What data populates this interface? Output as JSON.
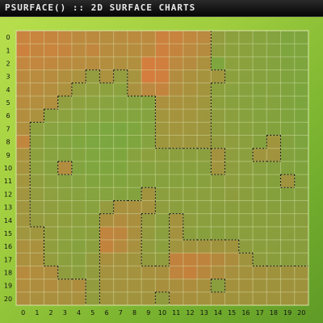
{
  "title": "PSURFACE() :: 2D SURFACE CHARTS",
  "colors": {
    "low": "#58b540",
    "high": "#ec6c3e",
    "frame_start": "#b9e04e",
    "frame_end": "#5f9a27",
    "border": "#d9e5a8",
    "contour": "#111111"
  },
  "chart_data": {
    "type": "heatmap",
    "title": "PSURFACE() :: 2D SURFACE CHARTS",
    "x_ticks": [
      "0",
      "1",
      "2",
      "3",
      "4",
      "5",
      "6",
      "7",
      "8",
      "9",
      "10",
      "11",
      "12",
      "13",
      "14",
      "15",
      "16",
      "17",
      "18",
      "19",
      "20"
    ],
    "y_ticks": [
      "0",
      "1",
      "2",
      "3",
      "4",
      "5",
      "6",
      "7",
      "8",
      "9",
      "10",
      "11",
      "12",
      "13",
      "14",
      "15",
      "16",
      "17",
      "18",
      "19",
      "20"
    ],
    "value_range": [
      0,
      1
    ],
    "contour_threshold": 0.5,
    "grid": true,
    "values": [
      [
        0.8,
        0.8,
        0.78,
        0.76,
        0.72,
        0.72,
        0.68,
        0.7,
        0.72,
        0.72,
        0.82,
        0.8,
        0.75,
        0.72,
        0.44,
        0.4,
        0.38,
        0.35,
        0.34,
        0.3,
        0.3
      ],
      [
        0.82,
        0.78,
        0.8,
        0.78,
        0.72,
        0.76,
        0.7,
        0.68,
        0.68,
        0.72,
        0.84,
        0.78,
        0.72,
        0.68,
        0.42,
        0.4,
        0.38,
        0.36,
        0.34,
        0.3,
        0.3
      ],
      [
        0.76,
        0.76,
        0.74,
        0.72,
        0.7,
        0.68,
        0.66,
        0.64,
        0.64,
        0.88,
        0.86,
        0.72,
        0.68,
        0.62,
        0.3,
        0.4,
        0.38,
        0.36,
        0.34,
        0.32,
        0.3
      ],
      [
        0.72,
        0.7,
        0.68,
        0.64,
        0.6,
        0.45,
        0.62,
        0.45,
        0.58,
        0.88,
        0.86,
        0.66,
        0.62,
        0.58,
        0.55,
        0.4,
        0.38,
        0.36,
        0.34,
        0.32,
        0.3
      ],
      [
        0.7,
        0.68,
        0.66,
        0.62,
        0.44,
        0.42,
        0.4,
        0.38,
        0.6,
        0.72,
        0.78,
        0.64,
        0.6,
        0.56,
        0.4,
        0.38,
        0.36,
        0.34,
        0.34,
        0.32,
        0.3
      ],
      [
        0.68,
        0.66,
        0.64,
        0.42,
        0.4,
        0.38,
        0.36,
        0.35,
        0.34,
        0.34,
        0.62,
        0.6,
        0.58,
        0.54,
        0.4,
        0.38,
        0.36,
        0.34,
        0.34,
        0.32,
        0.3
      ],
      [
        0.66,
        0.62,
        0.4,
        0.38,
        0.36,
        0.34,
        0.32,
        0.32,
        0.33,
        0.34,
        0.56,
        0.58,
        0.56,
        0.52,
        0.42,
        0.4,
        0.36,
        0.34,
        0.34,
        0.32,
        0.3
      ],
      [
        0.64,
        0.4,
        0.36,
        0.34,
        0.32,
        0.3,
        0.28,
        0.28,
        0.3,
        0.34,
        0.54,
        0.56,
        0.54,
        0.52,
        0.42,
        0.4,
        0.38,
        0.36,
        0.34,
        0.32,
        0.3
      ],
      [
        0.76,
        0.4,
        0.34,
        0.32,
        0.3,
        0.28,
        0.28,
        0.28,
        0.3,
        0.34,
        0.52,
        0.54,
        0.52,
        0.52,
        0.44,
        0.42,
        0.4,
        0.36,
        0.56,
        0.34,
        0.3
      ],
      [
        0.6,
        0.4,
        0.36,
        0.34,
        0.32,
        0.3,
        0.3,
        0.3,
        0.36,
        0.4,
        0.4,
        0.4,
        0.4,
        0.4,
        0.58,
        0.42,
        0.4,
        0.56,
        0.56,
        0.34,
        0.32
      ],
      [
        0.58,
        0.4,
        0.36,
        0.66,
        0.32,
        0.3,
        0.3,
        0.3,
        0.34,
        0.36,
        0.38,
        0.38,
        0.38,
        0.38,
        0.56,
        0.42,
        0.4,
        0.38,
        0.36,
        0.34,
        0.32
      ],
      [
        0.56,
        0.42,
        0.38,
        0.36,
        0.34,
        0.32,
        0.32,
        0.32,
        0.34,
        0.36,
        0.36,
        0.36,
        0.36,
        0.38,
        0.4,
        0.42,
        0.4,
        0.38,
        0.36,
        0.56,
        0.34
      ],
      [
        0.55,
        0.44,
        0.4,
        0.38,
        0.36,
        0.34,
        0.34,
        0.34,
        0.34,
        0.56,
        0.4,
        0.4,
        0.4,
        0.4,
        0.4,
        0.42,
        0.4,
        0.38,
        0.36,
        0.36,
        0.36
      ],
      [
        0.55,
        0.44,
        0.42,
        0.4,
        0.38,
        0.36,
        0.46,
        0.6,
        0.6,
        0.58,
        0.42,
        0.4,
        0.4,
        0.4,
        0.4,
        0.4,
        0.4,
        0.4,
        0.38,
        0.38,
        0.38
      ],
      [
        0.55,
        0.46,
        0.44,
        0.42,
        0.4,
        0.4,
        0.62,
        0.66,
        0.62,
        0.46,
        0.4,
        0.58,
        0.42,
        0.4,
        0.4,
        0.4,
        0.4,
        0.4,
        0.4,
        0.4,
        0.4
      ],
      [
        0.54,
        0.54,
        0.44,
        0.4,
        0.38,
        0.4,
        0.76,
        0.74,
        0.62,
        0.46,
        0.4,
        0.58,
        0.4,
        0.38,
        0.38,
        0.4,
        0.4,
        0.4,
        0.4,
        0.4,
        0.4
      ],
      [
        0.62,
        0.6,
        0.42,
        0.38,
        0.36,
        0.4,
        0.78,
        0.7,
        0.6,
        0.44,
        0.4,
        0.56,
        0.56,
        0.56,
        0.56,
        0.56,
        0.42,
        0.4,
        0.4,
        0.4,
        0.4
      ],
      [
        0.62,
        0.62,
        0.44,
        0.4,
        0.38,
        0.44,
        0.6,
        0.58,
        0.56,
        0.46,
        0.44,
        0.78,
        0.78,
        0.76,
        0.7,
        0.64,
        0.56,
        0.42,
        0.4,
        0.4,
        0.4
      ],
      [
        0.7,
        0.66,
        0.64,
        0.42,
        0.4,
        0.44,
        0.58,
        0.58,
        0.58,
        0.6,
        0.6,
        0.76,
        0.8,
        0.72,
        0.64,
        0.6,
        0.58,
        0.58,
        0.56,
        0.56,
        0.56
      ],
      [
        0.66,
        0.64,
        0.66,
        0.62,
        0.64,
        0.44,
        0.58,
        0.58,
        0.58,
        0.58,
        0.6,
        0.62,
        0.64,
        0.6,
        0.4,
        0.58,
        0.58,
        0.56,
        0.56,
        0.56,
        0.56
      ],
      [
        0.64,
        0.62,
        0.62,
        0.6,
        0.6,
        0.44,
        0.56,
        0.56,
        0.56,
        0.56,
        0.44,
        0.6,
        0.6,
        0.58,
        0.58,
        0.56,
        0.56,
        0.56,
        0.56,
        0.56,
        0.56
      ]
    ]
  }
}
